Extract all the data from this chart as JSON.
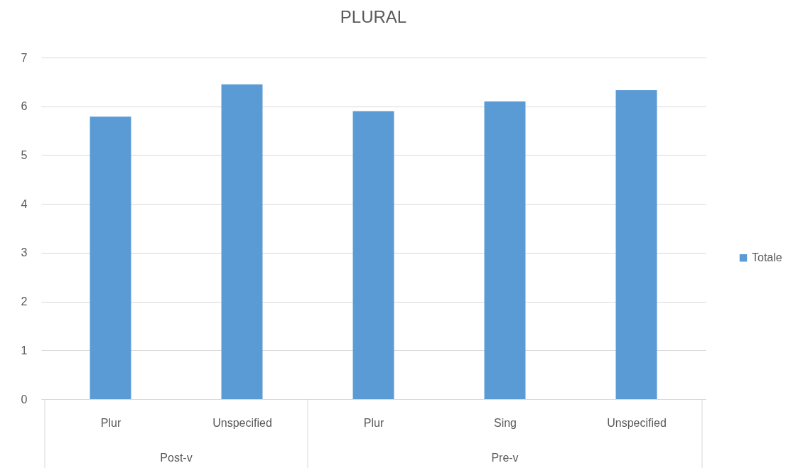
{
  "chart_data": {
    "type": "bar",
    "title": "PLURAL",
    "categories": [
      "Plur",
      "Unspecified",
      "Plur",
      "Sing",
      "Unspecified"
    ],
    "series": [
      {
        "name": "Totale",
        "color": "#5b9bd5",
        "values": [
          5.79,
          6.45,
          5.9,
          6.1,
          6.33
        ]
      }
    ],
    "ylim": [
      0,
      7
    ],
    "yticks": [
      0,
      1,
      2,
      3,
      4,
      5,
      6,
      7
    ],
    "grid": "y",
    "legend": "right",
    "annotations": [
      "Post-v",
      "Pre-v"
    ]
  }
}
